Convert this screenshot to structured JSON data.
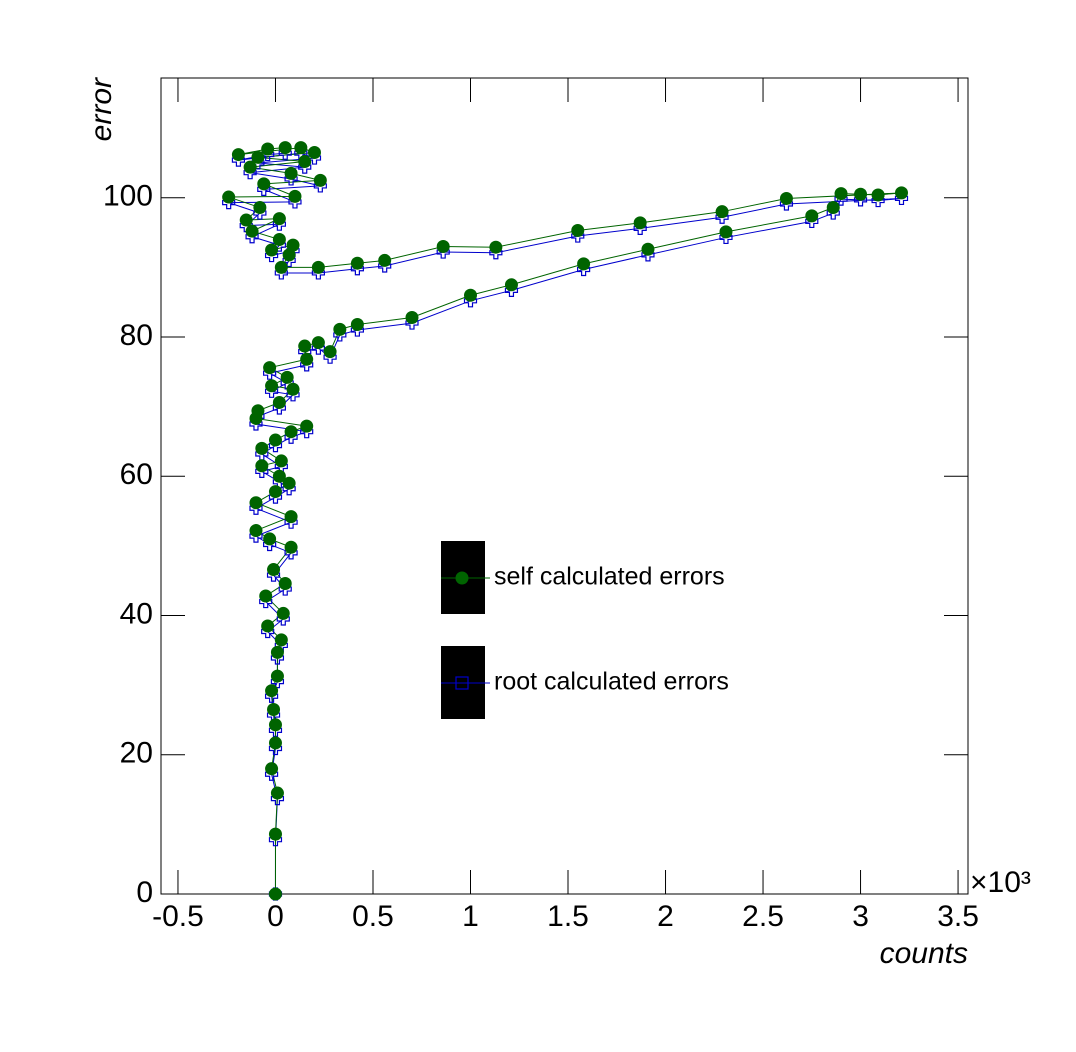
{
  "chart_data": {
    "type": "line",
    "x_label": "counts",
    "y_label": "error",
    "x_multiplier": "×10³",
    "x": [
      0,
      0,
      0.01,
      -0.02,
      0,
      0,
      -0.01,
      -0.02,
      0.01,
      0.01,
      0.03,
      -0.04,
      0.04,
      -0.05,
      0.05,
      -0.01,
      0.08,
      -0.03,
      -0.1,
      0.08,
      -0.1,
      0,
      0.07,
      0.02,
      -0.07,
      0.03,
      -0.07,
      0,
      0.08,
      0.16,
      -0.1,
      -0.09,
      0.02,
      0.09,
      -0.02,
      0.06,
      -0.03,
      0.16,
      0.15,
      0.22,
      0.28,
      0.33,
      0.42,
      0.7,
      1,
      1.21,
      1.58,
      1.91,
      2.31,
      2.75,
      2.86,
      2.9,
      3,
      3.09,
      3.21,
      2.62,
      2.29,
      1.87,
      1.55,
      1.13,
      0.86,
      0.56,
      0.42,
      0.22,
      0.03,
      0.07,
      0.09,
      -0.02,
      0.02,
      -0.12,
      0.02,
      -0.15,
      -0.08,
      -0.24,
      0.1,
      -0.06,
      0.23,
      0.08,
      -0.13,
      0.15,
      -0.09,
      0.2,
      0.13,
      -0.19,
      -0.04,
      0.05
    ],
    "series": [
      {
        "name": "self calculated errors",
        "color": "#006400",
        "marker": "circle",
        "values": [
          0,
          8.6,
          14.5,
          18,
          21.7,
          24.3,
          26.5,
          29.2,
          31.3,
          34.7,
          36.5,
          38.5,
          40.3,
          42.8,
          44.6,
          46.6,
          49.8,
          51,
          52.2,
          54.2,
          56.2,
          57.8,
          59,
          60,
          61.5,
          62.2,
          64,
          65.2,
          66.4,
          67.2,
          68.3,
          69.4,
          70.6,
          72.5,
          73,
          74.2,
          75.6,
          76.8,
          78.7,
          79.2,
          77.9,
          81.1,
          81.8,
          82.8,
          86,
          87.5,
          90.5,
          92.6,
          95.1,
          97.4,
          98.6,
          100.6,
          100.5,
          100.4,
          100.7,
          99.9,
          98,
          96.4,
          95.3,
          92.9,
          93,
          91,
          90.6,
          90,
          90,
          91.8,
          93.2,
          92.5,
          94,
          95.2,
          97,
          96.8,
          98.6,
          100.1,
          100.2,
          102,
          102.5,
          103.5,
          104.4,
          105.2,
          105.8,
          106.5,
          107.2,
          106.2,
          107,
          107.2
        ]
      },
      {
        "name": "root calculated errors",
        "color": "#0000cc",
        "marker": "open-cross",
        "values": [
          0,
          7.8,
          13.7,
          17.2,
          20.9,
          23.5,
          25.7,
          28.4,
          30.5,
          33.9,
          35.7,
          37.7,
          39.5,
          42,
          43.8,
          45.8,
          49,
          50.2,
          51.4,
          53.4,
          55.4,
          57,
          58.2,
          59.2,
          60.7,
          61.4,
          63.2,
          64.4,
          65.6,
          66.4,
          67.5,
          68.6,
          69.8,
          71.7,
          72.2,
          73.4,
          74.8,
          76,
          77.9,
          78.4,
          77.1,
          80.3,
          81,
          82,
          85.2,
          86.7,
          89.7,
          91.8,
          94.3,
          96.6,
          97.8,
          99.8,
          99.7,
          99.6,
          99.9,
          99.1,
          97.2,
          95.6,
          94.5,
          92.1,
          92.2,
          90.2,
          89.8,
          89.2,
          89.2,
          91,
          92.4,
          91.7,
          93.2,
          94.4,
          96.2,
          96,
          97.8,
          99.3,
          99.4,
          101.2,
          101.7,
          102.7,
          103.6,
          104.4,
          105,
          105.7,
          106.4,
          105.4,
          106.2,
          106.4
        ]
      }
    ],
    "xlim": [
      -0.587,
      3.551
    ],
    "xticks": [
      -0.5,
      0,
      0.5,
      1,
      1.5,
      2,
      2.5,
      3,
      3.5
    ],
    "ylim": [
      0,
      117.2
    ],
    "yticks": [
      0,
      20,
      40,
      60,
      80,
      100
    ]
  }
}
